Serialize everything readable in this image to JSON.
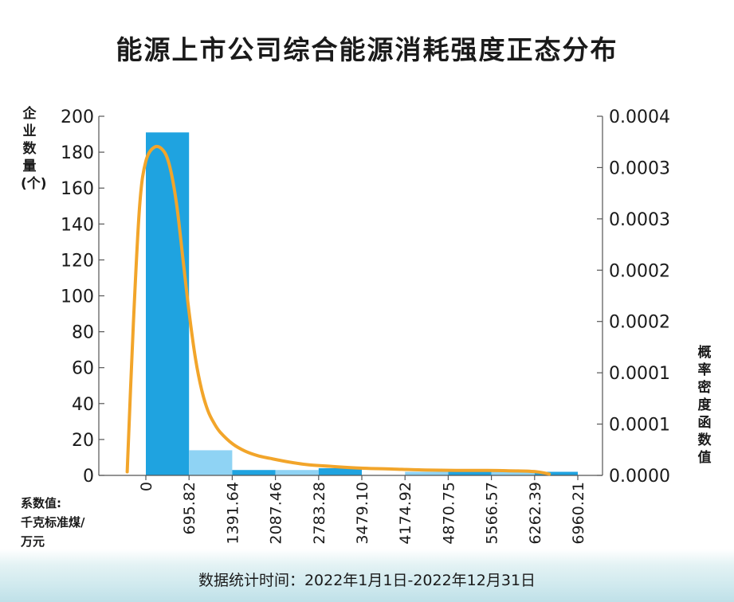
{
  "title": "能源上市公司综合能源消耗强度正态分布",
  "ylabel_left": "企业数量(个)",
  "ylabel_right": "概率密度函数值",
  "xlabel_unit": [
    "系数值:",
    "千克标准煤/",
    "万元"
  ],
  "footer": "数据统计时间：2022年1月1日-2022年12月31日",
  "colors": {
    "bar_dark": "#1fa3e0",
    "bar_light": "#8fd3f4",
    "curve": "#f2a52a",
    "axis": "#555555",
    "text": "#1a1a1a"
  },
  "chart_data": {
    "type": "bar",
    "title": "能源上市公司综合能源消耗强度正态分布",
    "xlabel": "系数值:千克标准煤/万元",
    "ylabel": "企业数量(个)",
    "y2label": "概率密度函数值",
    "x_ticks": [
      "0",
      "695.82",
      "1391.64",
      "2087.46",
      "2783.28",
      "3479.10",
      "4174.92",
      "4870.75",
      "5566.57",
      "6262.39",
      "6960.21"
    ],
    "y_ticks": [
      0,
      20,
      40,
      60,
      80,
      100,
      120,
      140,
      160,
      180,
      200
    ],
    "y2_ticks": [
      "0.0000",
      "0.0001",
      "0.0001",
      "0.0002",
      "0.0002",
      "0.0003",
      "0.0003",
      "0.0004"
    ],
    "ylim": [
      0,
      200
    ],
    "y2lim": [
      0,
      0.0004
    ],
    "bins": [
      {
        "from": 0,
        "to": 695.82,
        "count": 191,
        "shade": "dark"
      },
      {
        "from": 695.82,
        "to": 1391.64,
        "count": 14,
        "shade": "light"
      },
      {
        "from": 1391.64,
        "to": 2087.46,
        "count": 3,
        "shade": "dark"
      },
      {
        "from": 2087.46,
        "to": 2783.28,
        "count": 3,
        "shade": "light"
      },
      {
        "from": 2783.28,
        "to": 3479.1,
        "count": 4,
        "shade": "dark"
      },
      {
        "from": 3479.1,
        "to": 4174.92,
        "count": 0,
        "shade": "light"
      },
      {
        "from": 4174.92,
        "to": 4870.75,
        "count": 2,
        "shade": "light"
      },
      {
        "from": 4870.75,
        "to": 5566.57,
        "count": 2,
        "shade": "dark"
      },
      {
        "from": 5566.57,
        "to": 6262.39,
        "count": 3,
        "shade": "light"
      },
      {
        "from": 6262.39,
        "to": 6960.21,
        "count": 2,
        "shade": "dark"
      }
    ],
    "density_curve": {
      "x": [
        -300,
        -200,
        -100,
        0,
        150,
        300,
        400,
        500,
        600,
        700,
        800,
        900,
        1000,
        1100,
        1200,
        1400,
        1600,
        1800,
        2000,
        2300,
        2600,
        3000,
        3500,
        4000,
        4500,
        5000,
        5500,
        6000,
        6300,
        6500
      ],
      "y": [
        4e-06,
        0.00017,
        0.0003,
        0.00035,
        0.000366,
        0.00036,
        0.00034,
        0.0003,
        0.00024,
        0.00018,
        0.00013,
        9.5e-05,
        7.2e-05,
        5.8e-05,
        4.8e-05,
        3.5e-05,
        2.7e-05,
        2.2e-05,
        1.9e-05,
        1.5e-05,
        1.2e-05,
        1e-05,
        8e-06,
        7e-06,
        6e-06,
        5.5e-06,
        5.5e-06,
        5e-06,
        4e-06,
        1.5e-06
      ]
    },
    "grid": false,
    "legend": "none"
  }
}
